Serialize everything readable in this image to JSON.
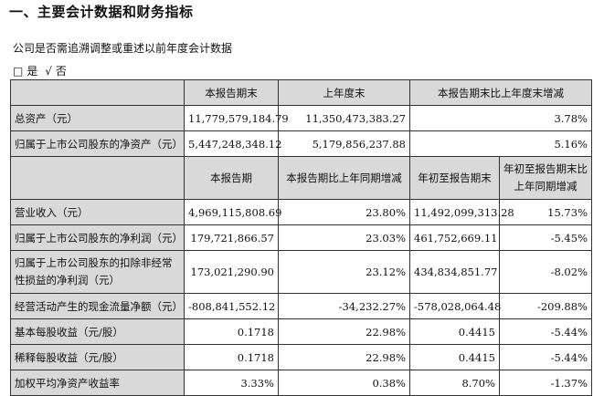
{
  "heading": "一、主要会计数据和财务指标",
  "note": "公司是否需追溯调整或重述以前年度会计数据",
  "choice": {
    "box": "□",
    "yes": "是",
    "check": "√",
    "no": "否"
  },
  "table1": {
    "headers": [
      "本报告期末",
      "上年度末",
      "本报告期末比上年度末增减"
    ],
    "rows": [
      {
        "label": "总资产（元）",
        "values": [
          "11,779,579,184.79",
          "11,350,473,383.27",
          "3.78%"
        ]
      },
      {
        "label": "归属于上市公司股东的净资产（元）",
        "values": [
          "5,447,248,348.12",
          "5,179,856,237.88",
          "5.16%"
        ]
      }
    ]
  },
  "table2": {
    "headers": [
      "本报告期",
      "本报告期比上年同期增减",
      "年初至报告期末",
      "年初至报告期末比上年同期增减"
    ],
    "rows": [
      {
        "label": "营业收入（元）",
        "values": [
          "4,969,115,808.69",
          "23.80%",
          "11,492,099,313.28",
          "15.73%"
        ]
      },
      {
        "label": "归属于上市公司股东的净利润（元）",
        "values": [
          "179,721,866.57",
          "23.03%",
          "461,752,669.11",
          "-5.45%"
        ]
      },
      {
        "label": "归属于上市公司股东的扣除非经常性损益的净利润（元）",
        "values": [
          "173,021,290.90",
          "23.12%",
          "434,834,851.77",
          "-8.02%"
        ]
      },
      {
        "label": "经营活动产生的现金流量净额（元）",
        "values": [
          "-808,841,552.12",
          "-34,232.27%",
          "-578,028,064.48",
          "-209.88%"
        ]
      },
      {
        "label": "基本每股收益（元/股）",
        "values": [
          "0.1718",
          "22.98%",
          "0.4415",
          "-5.44%"
        ]
      },
      {
        "label": "稀释每股收益（元/股）",
        "values": [
          "0.1718",
          "22.98%",
          "0.4415",
          "-5.44%"
        ]
      },
      {
        "label": "加权平均净资产收益率",
        "values": [
          "3.33%",
          "0.38%",
          "8.70%",
          "-1.37%"
        ]
      }
    ]
  }
}
